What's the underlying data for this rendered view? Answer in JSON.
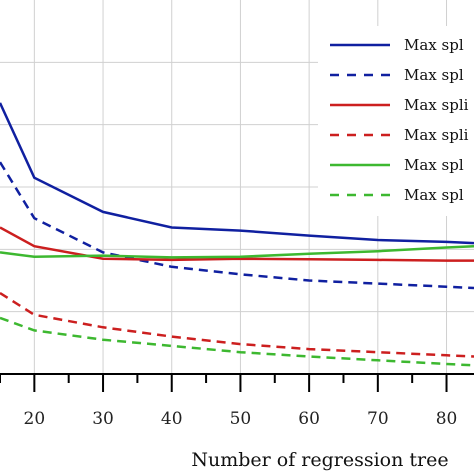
{
  "chart_data": {
    "type": "line",
    "xlabel": "Number of regression tree",
    "x_ticks": [
      20,
      30,
      40,
      50,
      60,
      70,
      80
    ],
    "xlim": [
      15,
      84
    ],
    "ylim": [
      0,
      6
    ],
    "grid": true,
    "legend_placement": "top-right",
    "x": [
      15,
      20,
      30,
      40,
      50,
      60,
      70,
      80,
      84
    ],
    "series": [
      {
        "name": "Max spl",
        "color": "#1020a0",
        "dash": "solid",
        "values": [
          4.35,
          3.15,
          2.6,
          2.35,
          2.3,
          2.22,
          2.15,
          2.12,
          2.1
        ]
      },
      {
        "name": "Max spl",
        "color": "#1020a0",
        "dash": "dashed",
        "values": [
          3.4,
          2.5,
          1.95,
          1.72,
          1.6,
          1.5,
          1.45,
          1.4,
          1.38
        ]
      },
      {
        "name": "Max spli",
        "color": "#cc1f1f",
        "dash": "solid",
        "values": [
          2.35,
          2.05,
          1.85,
          1.83,
          1.85,
          1.84,
          1.83,
          1.82,
          1.82
        ]
      },
      {
        "name": "Max spli",
        "color": "#cc1f1f",
        "dash": "dashed",
        "values": [
          1.3,
          0.95,
          0.75,
          0.6,
          0.48,
          0.4,
          0.35,
          0.3,
          0.28
        ]
      },
      {
        "name": "Max spl",
        "color": "#3db830",
        "dash": "solid",
        "values": [
          1.95,
          1.88,
          1.9,
          1.87,
          1.88,
          1.93,
          1.97,
          2.03,
          2.05
        ]
      },
      {
        "name": "Max spl",
        "color": "#3db830",
        "dash": "dashed",
        "values": [
          0.9,
          0.7,
          0.55,
          0.45,
          0.35,
          0.28,
          0.22,
          0.16,
          0.14
        ]
      }
    ]
  }
}
